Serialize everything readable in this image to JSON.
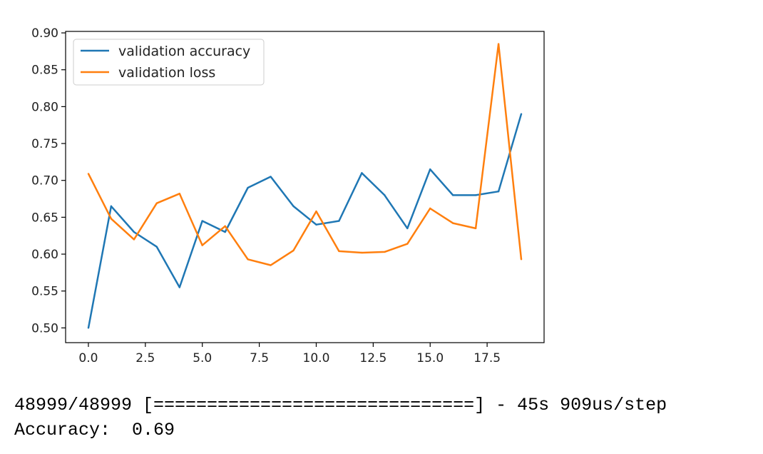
{
  "chart_data": {
    "type": "line",
    "x": [
      0,
      1,
      2,
      3,
      4,
      5,
      6,
      7,
      8,
      9,
      10,
      11,
      12,
      13,
      14,
      15,
      16,
      17,
      18,
      19
    ],
    "xlim": [
      -1.0,
      20.0
    ],
    "ylim": [
      0.48,
      0.902
    ],
    "grid": false,
    "legend_position": "top-left",
    "xticks": [
      0.0,
      2.5,
      5.0,
      7.5,
      10.0,
      12.5,
      15.0,
      17.5
    ],
    "xtick_labels": [
      "0.0",
      "2.5",
      "5.0",
      "7.5",
      "10.0",
      "12.5",
      "15.0",
      "17.5"
    ],
    "yticks": [
      0.5,
      0.55,
      0.6,
      0.65,
      0.7,
      0.75,
      0.8,
      0.85,
      0.9
    ],
    "ytick_labels": [
      "0.50",
      "0.55",
      "0.60",
      "0.65",
      "0.70",
      "0.75",
      "0.80",
      "0.85",
      "0.90"
    ],
    "series": [
      {
        "name": "validation accuracy",
        "color": "#1f77b4",
        "values": [
          0.5,
          0.665,
          0.63,
          0.61,
          0.555,
          0.645,
          0.63,
          0.69,
          0.705,
          0.665,
          0.64,
          0.645,
          0.71,
          0.68,
          0.635,
          0.715,
          0.68,
          0.68,
          0.685,
          0.79
        ]
      },
      {
        "name": "validation loss",
        "color": "#ff7f0e",
        "values": [
          0.709,
          0.648,
          0.62,
          0.669,
          0.682,
          0.612,
          0.638,
          0.593,
          0.585,
          0.605,
          0.658,
          0.604,
          0.602,
          0.603,
          0.614,
          0.662,
          0.642,
          0.635,
          0.885,
          0.593
        ]
      }
    ]
  },
  "console": {
    "progress_line": "48999/48999 [==============================] - 45s 909us/step",
    "accuracy_line": "Accuracy:  0.69"
  }
}
